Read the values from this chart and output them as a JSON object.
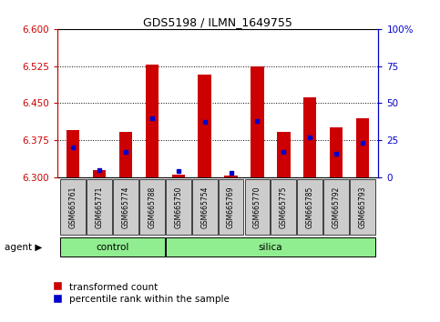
{
  "title": "GDS5198 / ILMN_1649755",
  "samples": [
    "GSM665761",
    "GSM665771",
    "GSM665774",
    "GSM665788",
    "GSM665750",
    "GSM665754",
    "GSM665769",
    "GSM665770",
    "GSM665775",
    "GSM665785",
    "GSM665792",
    "GSM665793"
  ],
  "groups": [
    "control",
    "control",
    "control",
    "control",
    "silica",
    "silica",
    "silica",
    "silica",
    "silica",
    "silica",
    "silica",
    "silica"
  ],
  "red_values": [
    6.395,
    6.315,
    6.392,
    6.527,
    6.305,
    6.508,
    6.303,
    6.525,
    6.392,
    6.462,
    6.4,
    6.42
  ],
  "blue_percentiles": [
    20,
    5,
    17,
    40,
    4,
    37,
    3,
    38,
    17,
    27,
    16,
    23
  ],
  "y_min": 6.3,
  "y_max": 6.6,
  "y_ticks": [
    6.3,
    6.375,
    6.45,
    6.525,
    6.6
  ],
  "y2_ticks": [
    0,
    25,
    50,
    75,
    100
  ],
  "bar_color": "#CC0000",
  "blue_color": "#0000CC",
  "bg_color": "#FFFFFF",
  "tick_bg": "#CCCCCC",
  "control_color": "#90EE90",
  "silica_color": "#90EE90",
  "bar_width": 0.5
}
